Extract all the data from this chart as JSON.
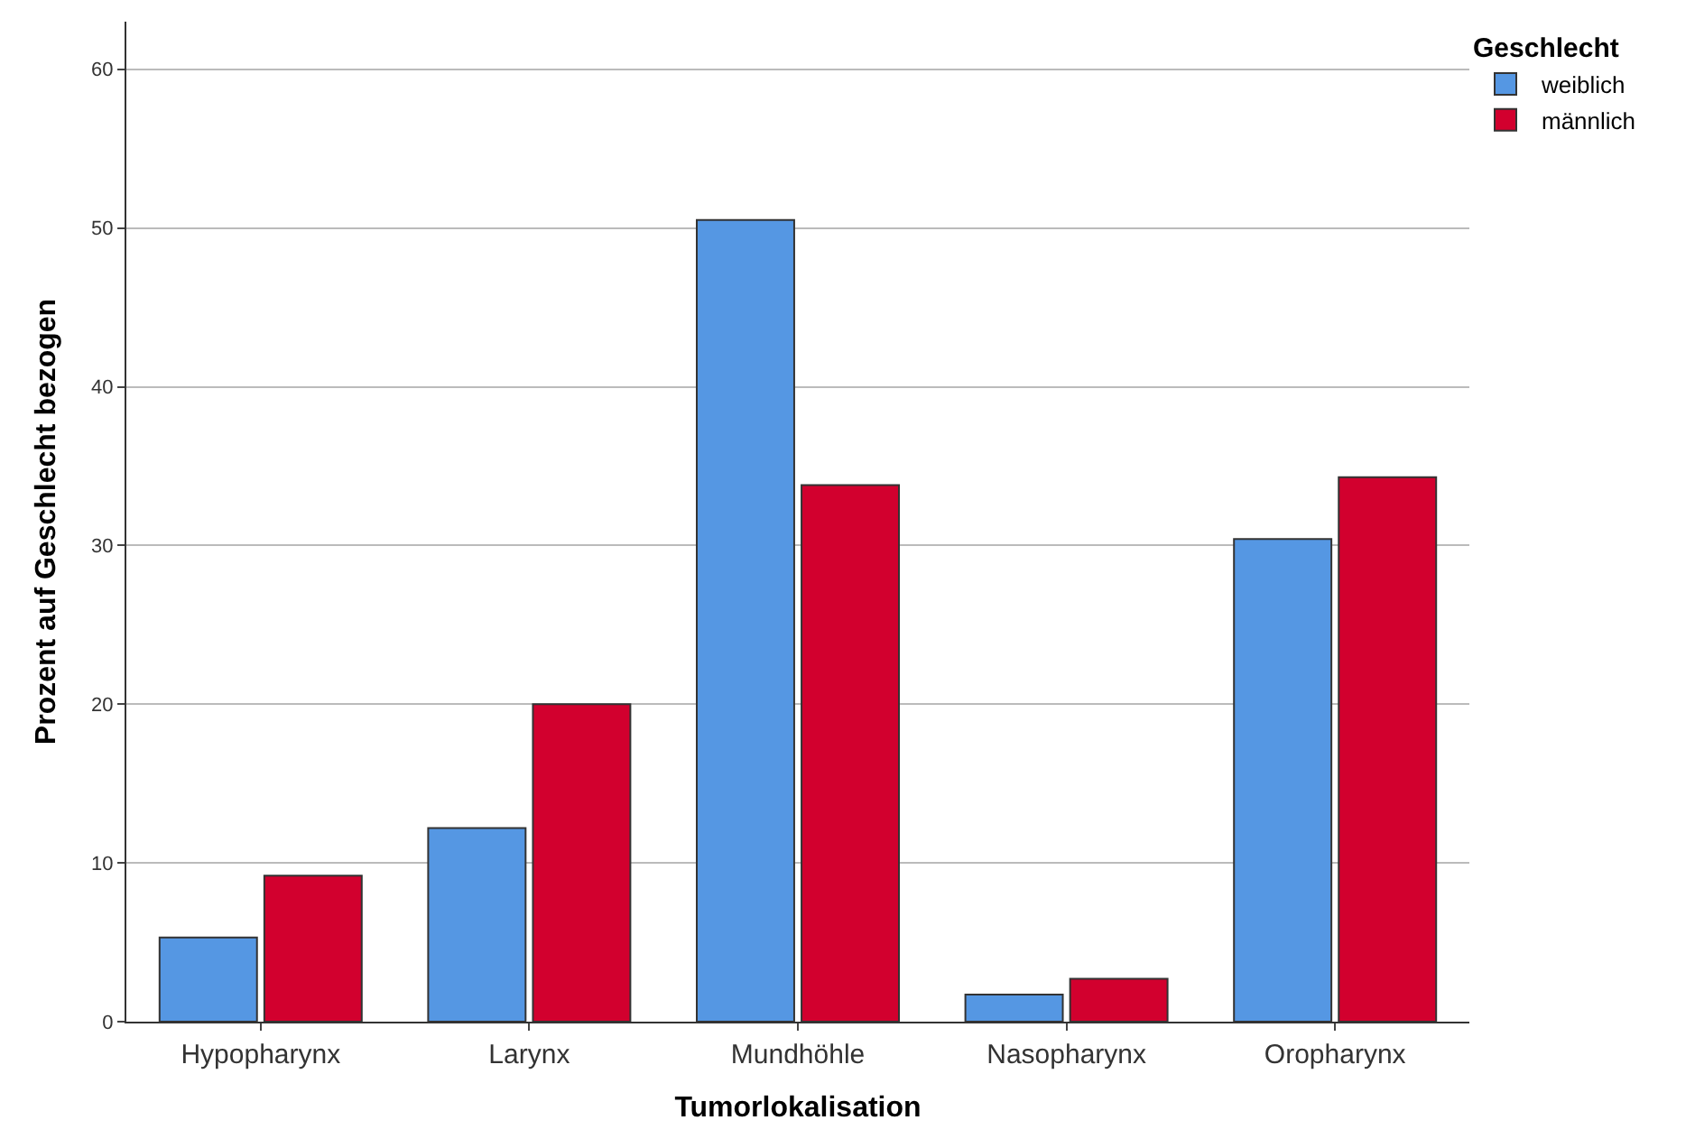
{
  "chart_data": {
    "type": "bar",
    "xlabel": "Tumorlokalisation",
    "ylabel": "Prozent auf Geschlecht bezogen",
    "legend_title": "Geschlecht",
    "categories": [
      "Hypopharynx",
      "Larynx",
      "Mundhöhle",
      "Nasopharynx",
      "Oropharynx"
    ],
    "series": [
      {
        "name": "weiblich",
        "color": "#5597e3",
        "values": [
          5.3,
          12.2,
          50.5,
          1.7,
          30.4
        ]
      },
      {
        "name": "männlich",
        "color": "#d2002e",
        "values": [
          9.2,
          20.0,
          33.8,
          2.7,
          34.3
        ]
      }
    ],
    "ylim": [
      0,
      63
    ],
    "yticks": [
      0,
      10,
      20,
      30,
      40,
      50,
      60
    ],
    "grid": "y",
    "legend": "top right"
  }
}
